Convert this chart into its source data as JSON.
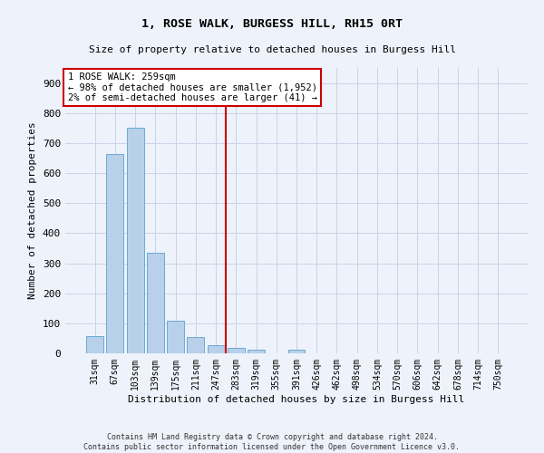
{
  "title": "1, ROSE WALK, BURGESS HILL, RH15 0RT",
  "subtitle": "Size of property relative to detached houses in Burgess Hill",
  "xlabel": "Distribution of detached houses by size in Burgess Hill",
  "ylabel": "Number of detached properties",
  "footer_line1": "Contains HM Land Registry data © Crown copyright and database right 2024.",
  "footer_line2": "Contains public sector information licensed under the Open Government Licence v3.0.",
  "bar_categories": [
    "31sqm",
    "67sqm",
    "103sqm",
    "139sqm",
    "175sqm",
    "211sqm",
    "247sqm",
    "283sqm",
    "319sqm",
    "355sqm",
    "391sqm",
    "426sqm",
    "462sqm",
    "498sqm",
    "534sqm",
    "570sqm",
    "606sqm",
    "642sqm",
    "678sqm",
    "714sqm",
    "750sqm"
  ],
  "bar_values": [
    57,
    665,
    750,
    335,
    110,
    55,
    27,
    18,
    12,
    0,
    12,
    0,
    0,
    0,
    0,
    0,
    0,
    0,
    0,
    0,
    0
  ],
  "bar_color": "#b8d0ea",
  "bar_edge_color": "#6aaad4",
  "annotation_text": "1 ROSE WALK: 259sqm\n← 98% of detached houses are smaller (1,952)\n2% of semi-detached houses are larger (41) →",
  "vline_x_index": 6.5,
  "vline_color": "#cc0000",
  "annotation_box_color": "#ffffff",
  "annotation_box_edge_color": "#cc0000",
  "background_color": "#eef2fa",
  "grid_color": "#c8d4e8",
  "ylim": [
    0,
    950
  ],
  "yticks": [
    0,
    100,
    200,
    300,
    400,
    500,
    600,
    700,
    800,
    900
  ]
}
